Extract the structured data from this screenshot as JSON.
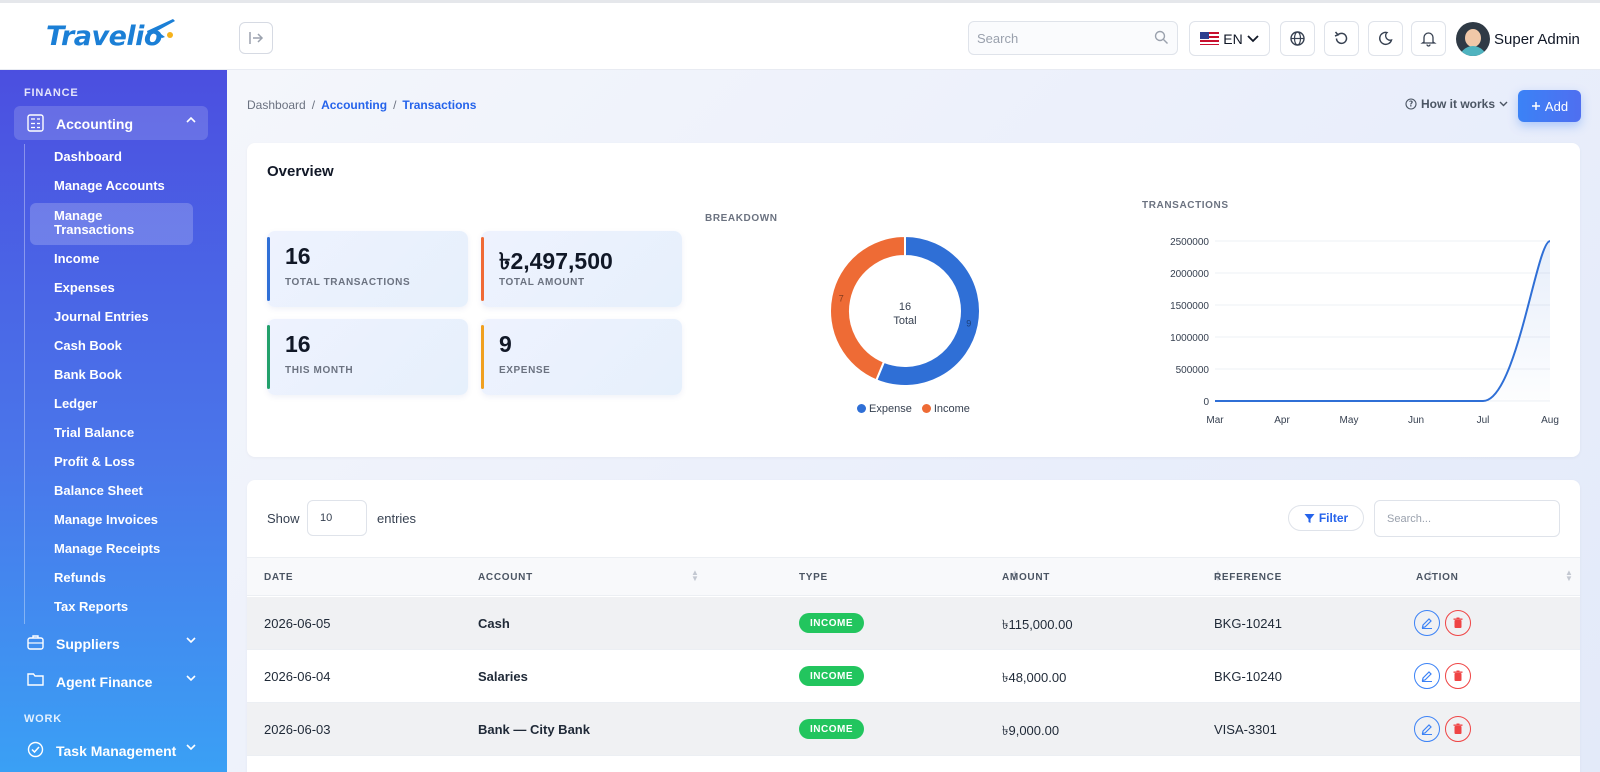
{
  "header": {
    "logo_text": "Travelio",
    "search_placeholder": "Search",
    "language": "EN",
    "user_name": "Super Admin",
    "icons": [
      "sidebar-collapse-icon",
      "search-icon",
      "us-flag-icon",
      "globe-icon",
      "refresh-icon",
      "moon-icon",
      "bell-icon"
    ]
  },
  "sidebar": {
    "section_finance": "FINANCE",
    "accounting": "Accounting",
    "sub_items": [
      "Dashboard",
      "Manage Accounts",
      "Manage Transactions",
      "Income",
      "Expenses",
      "Journal Entries",
      "Cash Book",
      "Bank Book",
      "Ledger",
      "Trial Balance",
      "Profit & Loss",
      "Balance Sheet",
      "Manage Invoices",
      "Manage Receipts",
      "Refunds",
      "Tax Reports"
    ],
    "active_item": "Manage Transactions",
    "suppliers": "Suppliers",
    "agent_finance": "Agent Finance",
    "section_work": "WORK",
    "task_management": "Task Management"
  },
  "breadcrumb": {
    "home": "Dashboard",
    "sep": "/",
    "accounting": "Accounting",
    "current": "Transactions"
  },
  "actions": {
    "how_it_works": "How it works",
    "add": "Add"
  },
  "overview": {
    "title": "Overview",
    "stats": [
      {
        "value": "16",
        "label": "TOTAL TRANSACTIONS",
        "color": "#2f6fd6"
      },
      {
        "value": "৳2,497,500",
        "label": "TOTAL AMOUNT",
        "color": "#f06a35"
      },
      {
        "value": "16",
        "label": "THIS MONTH",
        "color": "#22a06b"
      },
      {
        "value": "9",
        "label": "EXPENSE",
        "color": "#f0a020"
      }
    ],
    "breakdown_label": "BREAKDOWN",
    "transactions_label": "TRANSACTIONS"
  },
  "chart_data": [
    {
      "type": "pie",
      "title": "BREAKDOWN",
      "donut": true,
      "center_value": "16",
      "center_label": "Total",
      "slices": [
        {
          "name": "Expense",
          "value": 9,
          "color": "#2f6fd6"
        },
        {
          "name": "Income",
          "value": 7,
          "color": "#ee6b35"
        }
      ],
      "legend": "bottom"
    },
    {
      "type": "area",
      "title": "TRANSACTIONS",
      "categories": [
        "Mar",
        "Apr",
        "May",
        "Jun",
        "Jul",
        "Aug"
      ],
      "values": [
        0,
        0,
        0,
        0,
        0,
        2497500
      ],
      "yticks": [
        0,
        500000,
        1000000,
        1500000,
        2000000,
        2500000
      ],
      "ylim": [
        0,
        2500000
      ],
      "color": "#2f6fd6",
      "grid": true
    }
  ],
  "table": {
    "show": "Show",
    "entries_value": "10",
    "entries": "entries",
    "filter": "Filter",
    "search_placeholder": "Search...",
    "columns": [
      "DATE",
      "ACCOUNT",
      "TYPE",
      "AMOUNT",
      "REFERENCE",
      "ACTION"
    ],
    "rows": [
      {
        "date": "2026-06-05",
        "account": "Cash",
        "type": "INCOME",
        "amount": "৳115,000.00",
        "reference": "BKG-10241"
      },
      {
        "date": "2026-06-04",
        "account": "Salaries",
        "type": "INCOME",
        "amount": "৳48,000.00",
        "reference": "BKG-10240"
      },
      {
        "date": "2026-06-03",
        "account": "Bank — City Bank",
        "type": "INCOME",
        "amount": "৳9,000.00",
        "reference": "VISA-3301"
      }
    ]
  }
}
